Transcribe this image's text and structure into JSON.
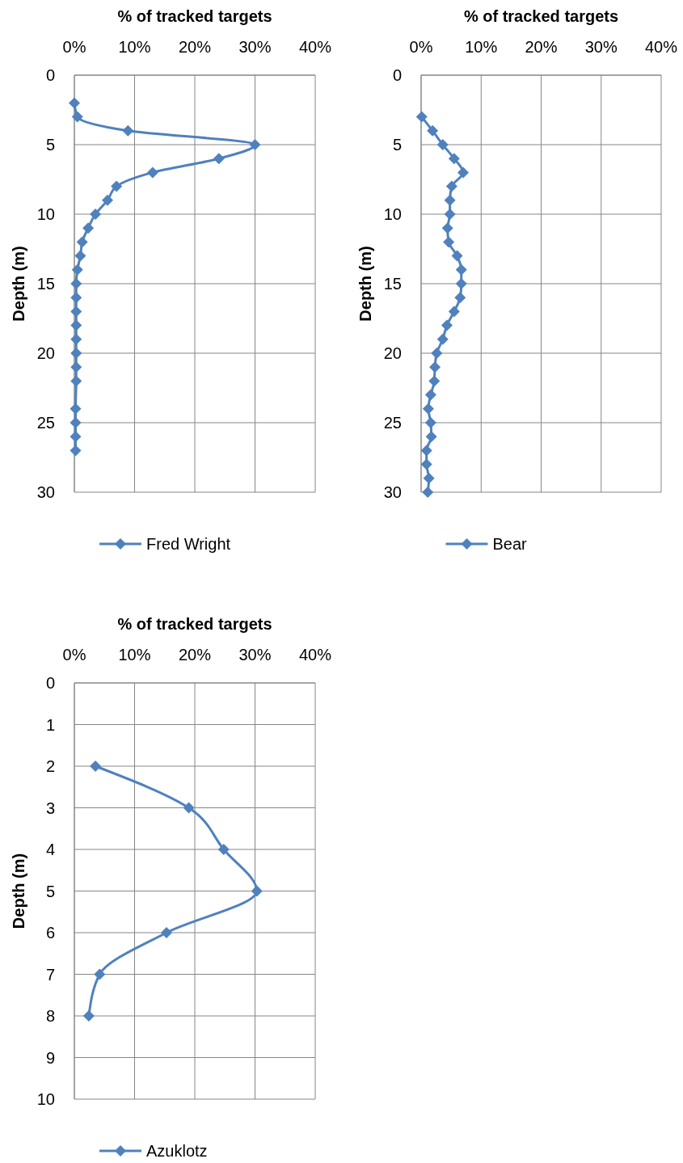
{
  "chart_data": [
    {
      "type": "line",
      "xlabel": "% of tracked targets",
      "ylabel": "Depth (m)",
      "xlim": [
        0,
        40
      ],
      "xticks": [
        {
          "value": 0,
          "label": "0%"
        },
        {
          "value": 10,
          "label": "10%"
        },
        {
          "value": 20,
          "label": "20%"
        },
        {
          "value": 30,
          "label": "30%"
        },
        {
          "value": 40,
          "label": "40%"
        }
      ],
      "ylim": [
        30,
        0
      ],
      "yticks": [
        0,
        5,
        10,
        15,
        20,
        25,
        30
      ],
      "grid": true,
      "legend": "bottom",
      "marker": "diamond",
      "line_style": "solid",
      "series": [
        {
          "name": "Fred Wright",
          "color": "#4f81bd",
          "x": [
            0,
            0.5,
            8.9,
            30,
            24,
            13,
            7,
            5.5,
            3.5,
            2.3,
            1.3,
            1,
            0.5,
            0.3,
            0.3,
            0.3,
            0.3,
            0.3,
            0.3,
            0.3,
            0.3,
            0.2,
            0.2,
            0.2,
            0.2
          ],
          "values": [
            2,
            3,
            4,
            5,
            6,
            7,
            8,
            9,
            10,
            11,
            12,
            13,
            14,
            15,
            16,
            17,
            18,
            19,
            20,
            21,
            22,
            24,
            25,
            26,
            27
          ]
        }
      ]
    },
    {
      "type": "line",
      "xlabel": "% of tracked targets",
      "ylabel": "Depth (m)",
      "xlim": [
        0,
        40
      ],
      "xticks": [
        {
          "value": 0,
          "label": "0%"
        },
        {
          "value": 10,
          "label": "10%"
        },
        {
          "value": 20,
          "label": "20%"
        },
        {
          "value": 30,
          "label": "30%"
        },
        {
          "value": 40,
          "label": "40%"
        }
      ],
      "ylim": [
        30,
        0
      ],
      "yticks": [
        0,
        5,
        10,
        15,
        20,
        25,
        30
      ],
      "grid": true,
      "legend": "bottom",
      "marker": "diamond",
      "line_style": "solid",
      "series": [
        {
          "name": "Bear",
          "color": "#4f81bd",
          "x": [
            0.1,
            1.9,
            3.6,
            5.5,
            7,
            5.1,
            4.8,
            4.8,
            4.4,
            4.6,
            6,
            6.7,
            6.7,
            6.5,
            5.5,
            4.3,
            3.6,
            2.6,
            2.3,
            2.2,
            1.6,
            1.2,
            1.6,
            1.7,
            0.9,
            0.9,
            1.3,
            1.1
          ],
          "values": [
            3,
            4,
            5,
            6,
            7,
            8,
            9,
            10,
            11,
            12,
            13,
            14,
            15,
            16,
            17,
            18,
            19,
            20,
            21,
            22,
            23,
            24,
            25,
            26,
            27,
            28,
            29,
            30
          ]
        }
      ]
    },
    {
      "type": "line",
      "xlabel": "% of tracked targets",
      "ylabel": "Depth (m)",
      "xlim": [
        0,
        40
      ],
      "xticks": [
        {
          "value": 0,
          "label": "0%"
        },
        {
          "value": 10,
          "label": "10%"
        },
        {
          "value": 20,
          "label": "20%"
        },
        {
          "value": 30,
          "label": "30%"
        },
        {
          "value": 40,
          "label": "40%"
        }
      ],
      "ylim": [
        10,
        0
      ],
      "yticks": [
        0,
        1,
        2,
        3,
        4,
        5,
        6,
        7,
        8,
        9,
        10
      ],
      "grid": true,
      "legend": "bottom",
      "marker": "diamond",
      "line_style": "solid",
      "series": [
        {
          "name": "Azuklotz",
          "color": "#4f81bd",
          "x": [
            3.5,
            19,
            24.8,
            30.3,
            15.3,
            4.2,
            2.4
          ],
          "values": [
            2,
            3,
            4,
            5,
            6,
            7,
            8
          ]
        }
      ]
    }
  ]
}
